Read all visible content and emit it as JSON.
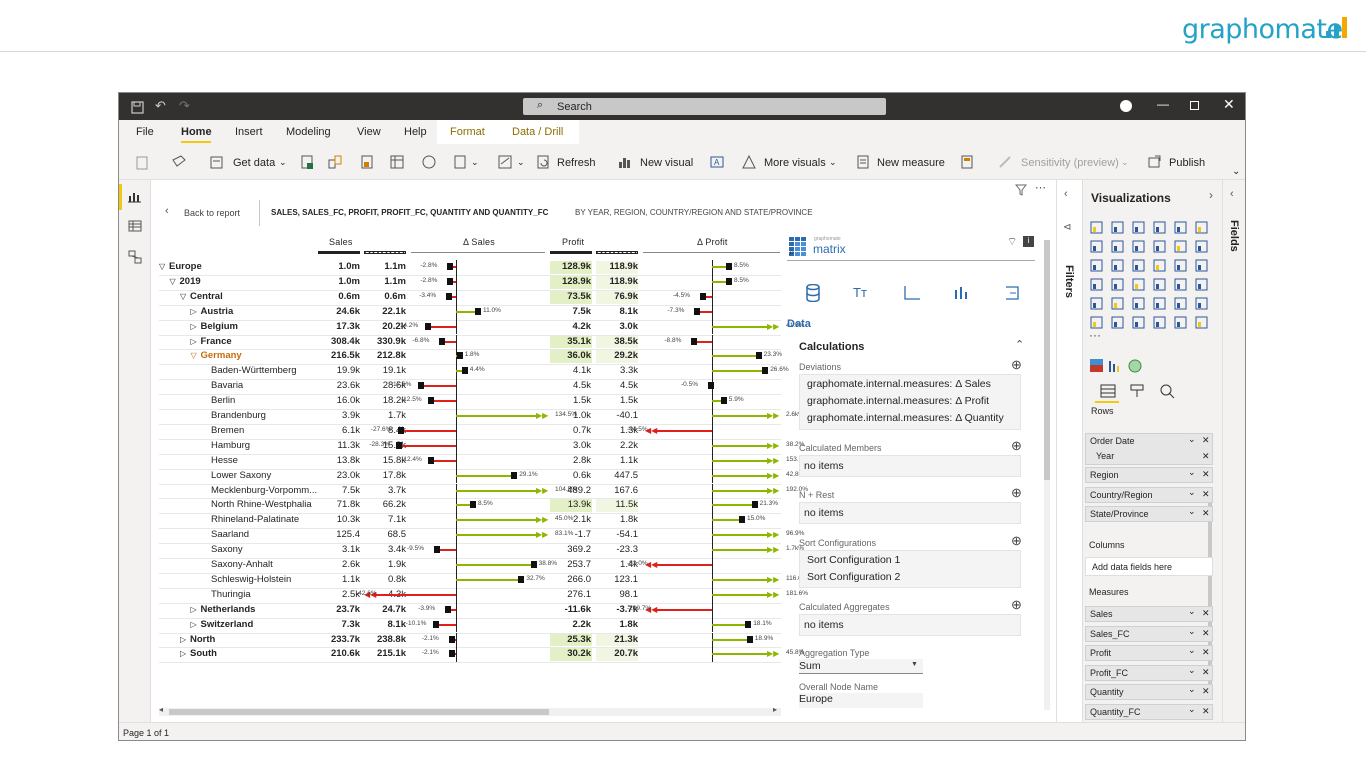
{
  "brand": {
    "name": "graphomate"
  },
  "window": {
    "search_placeholder": "Search",
    "tabs": [
      "File",
      "Home",
      "Insert",
      "Modeling",
      "View",
      "Help",
      "Format",
      "Data / Drill"
    ],
    "toolbar": {
      "get_data": "Get data",
      "refresh": "Refresh",
      "new_visual": "New visual",
      "more_visuals": "More visuals",
      "new_measure": "New measure",
      "sensitivity": "Sensitivity (preview)",
      "publish": "Publish"
    },
    "status": "Page 1 of 1"
  },
  "report": {
    "back": "Back to report",
    "title": "SALES, SALES_FC, PROFIT, PROFIT_FC, QUANTITY AND QUANTITY_FC",
    "subtitle": "BY YEAR, REGION, COUNTRY/REGION AND STATE/PROVINCE",
    "headers": {
      "sales": "Sales",
      "dsales": "Δ Sales",
      "profit": "Profit",
      "dprofit": "Δ Profit"
    },
    "rows": [
      {
        "label": "Europe",
        "ind": 0,
        "exp": "▽",
        "b": 1,
        "s": "1.0m",
        "sf": "1.1m",
        "ds": "-2.8%",
        "dsv": -2.8,
        "p": "128.9k",
        "pf": "118.9k",
        "dp": "8.5%",
        "dpv": 8.5
      },
      {
        "label": "2019",
        "ind": 1,
        "exp": "▽",
        "b": 1,
        "s": "1.0m",
        "sf": "1.1m",
        "ds": "-2.8%",
        "dsv": -2.8,
        "p": "128.9k",
        "pf": "118.9k",
        "dp": "8.5%",
        "dpv": 8.5
      },
      {
        "label": "Central",
        "ind": 2,
        "exp": "▽",
        "b": 1,
        "s": "0.6m",
        "sf": "0.6m",
        "ds": "-3.4%",
        "dsv": -3.4,
        "p": "73.5k",
        "pf": "76.9k",
        "dp": "-4.5%",
        "dpv": -4.5
      },
      {
        "label": "Austria",
        "ind": 3,
        "exp": "▷",
        "b": 1,
        "s": "24.6k",
        "sf": "22.1k",
        "ds": "11.0%",
        "dsv": 11.0,
        "p": "7.5k",
        "pf": "8.1k",
        "dp": "-7.3%",
        "dpv": -7.3
      },
      {
        "label": "Belgium",
        "ind": 3,
        "exp": "▷",
        "b": 1,
        "s": "17.3k",
        "sf": "20.2k",
        "ds": "-14.2%",
        "dsv": -14.2,
        "p": "4.2k",
        "pf": "3.0k",
        "dp": "41.9%",
        "dpv": 41.9
      },
      {
        "label": "France",
        "ind": 3,
        "exp": "▷",
        "b": 1,
        "s": "308.4k",
        "sf": "330.9k",
        "ds": "-6.8%",
        "dsv": -6.8,
        "p": "35.1k",
        "pf": "38.5k",
        "dp": "-8.8%",
        "dpv": -8.8
      },
      {
        "label": "Germany",
        "ind": 3,
        "exp": "▽",
        "b": 1,
        "hl": 1,
        "s": "216.5k",
        "sf": "212.8k",
        "ds": "1.8%",
        "dsv": 1.8,
        "p": "36.0k",
        "pf": "29.2k",
        "dp": "23.3%",
        "dpv": 23.3
      },
      {
        "label": "Baden-Württemberg",
        "ind": 4,
        "exp": "",
        "b": 0,
        "s": "19.9k",
        "sf": "19.1k",
        "ds": "4.4%",
        "dsv": 4.4,
        "p": "4.1k",
        "pf": "3.3k",
        "dp": "26.6%",
        "dpv": 26.6
      },
      {
        "label": "Bavaria",
        "ind": 4,
        "exp": "",
        "b": 0,
        "s": "23.6k",
        "sf": "28.6k",
        "ds": "-17.6%",
        "dsv": -17.6,
        "p": "4.5k",
        "pf": "4.5k",
        "dp": "-0.5%",
        "dpv": -0.5
      },
      {
        "label": "Berlin",
        "ind": 4,
        "exp": "",
        "b": 0,
        "s": "16.0k",
        "sf": "18.2k",
        "ds": "-12.5%",
        "dsv": -12.5,
        "p": "1.5k",
        "pf": "1.5k",
        "dp": "5.9%",
        "dpv": 5.9
      },
      {
        "label": "Brandenburg",
        "ind": 4,
        "exp": "",
        "b": 0,
        "s": "3.9k",
        "sf": "1.7k",
        "ds": "134.5%",
        "dsv": 134.5,
        "p": "1.0k",
        "pf": "-40.1",
        "dp": "2.6k%",
        "dpv": 2600
      },
      {
        "label": "Bremen",
        "ind": 4,
        "exp": "",
        "b": 0,
        "s": "6.1k",
        "sf": "8.4k",
        "ds": "-27.6%",
        "dsv": -27.6,
        "p": "0.7k",
        "pf": "1.3k",
        "dp": "-44.5%",
        "dpv": -44.5
      },
      {
        "label": "Hamburg",
        "ind": 4,
        "exp": "",
        "b": 0,
        "s": "11.3k",
        "sf": "15.8k",
        "ds": "-28.3%",
        "dsv": -28.3,
        "p": "3.0k",
        "pf": "2.2k",
        "dp": "38.2%",
        "dpv": 38.2
      },
      {
        "label": "Hesse",
        "ind": 4,
        "exp": "",
        "b": 0,
        "s": "13.8k",
        "sf": "15.8k",
        "ds": "-12.4%",
        "dsv": -12.4,
        "p": "2.8k",
        "pf": "1.1k",
        "dp": "153.6%",
        "dpv": 153.6
      },
      {
        "label": "Lower Saxony",
        "ind": 4,
        "exp": "",
        "b": 0,
        "s": "23.0k",
        "sf": "17.8k",
        "ds": "29.1%",
        "dsv": 29.1,
        "p": "0.6k",
        "pf": "447.5",
        "dp": "42.8%",
        "dpv": 42.8
      },
      {
        "label": "Mecklenburg-Vorpomm...",
        "ind": 4,
        "exp": "",
        "b": 0,
        "s": "7.5k",
        "sf": "3.7k",
        "ds": "104.5%",
        "dsv": 104.5,
        "p": "489.2",
        "pf": "167.6",
        "dp": "192.0%",
        "dpv": 192.0
      },
      {
        "label": "North Rhine-Westphalia",
        "ind": 4,
        "exp": "",
        "b": 0,
        "s": "71.8k",
        "sf": "66.2k",
        "ds": "8.5%",
        "dsv": 8.5,
        "p": "13.9k",
        "pf": "11.5k",
        "dp": "21.3%",
        "dpv": 21.3
      },
      {
        "label": "Rhineland-Palatinate",
        "ind": 4,
        "exp": "",
        "b": 0,
        "s": "10.3k",
        "sf": "7.1k",
        "ds": "45.0%",
        "dsv": 45.0,
        "p": "2.1k",
        "pf": "1.8k",
        "dp": "15.0%",
        "dpv": 15.0
      },
      {
        "label": "Saarland",
        "ind": 4,
        "exp": "",
        "b": 0,
        "s": "125.4",
        "sf": "68.5",
        "ds": "83.1%",
        "dsv": 83.1,
        "p": "-1.7",
        "pf": "-54.1",
        "dp": "96.9%",
        "dpv": 96.9
      },
      {
        "label": "Saxony",
        "ind": 4,
        "exp": "",
        "b": 0,
        "s": "3.1k",
        "sf": "3.4k",
        "ds": "-9.5%",
        "dsv": -9.5,
        "p": "369.2",
        "pf": "-23.3",
        "dp": "1.7k%",
        "dpv": 1700
      },
      {
        "label": "Saxony-Anhalt",
        "ind": 4,
        "exp": "",
        "b": 0,
        "s": "2.6k",
        "sf": "1.9k",
        "ds": "38.8%",
        "dsv": 38.8,
        "p": "253.7",
        "pf": "1.4k",
        "dp": "-82.0%",
        "dpv": -82.0
      },
      {
        "label": "Schleswig-Holstein",
        "ind": 4,
        "exp": "",
        "b": 0,
        "s": "1.1k",
        "sf": "0.8k",
        "ds": "32.7%",
        "dsv": 32.7,
        "p": "266.0",
        "pf": "123.1",
        "dp": "116.0%",
        "dpv": 116.0
      },
      {
        "label": "Thuringia",
        "ind": 4,
        "exp": "",
        "b": 0,
        "s": "2.5k",
        "sf": "4.3k",
        "ds": "-42.6%",
        "dsv": -42.6,
        "p": "276.1",
        "pf": "98.1",
        "dp": "181.6%",
        "dpv": 181.6
      },
      {
        "label": "Netherlands",
        "ind": 3,
        "exp": "▷",
        "b": 1,
        "s": "23.7k",
        "sf": "24.7k",
        "ds": "-3.9%",
        "dsv": -3.9,
        "p": "-11.6k",
        "pf": "-3.7k",
        "dp": "-209.7%",
        "dpv": -209.7
      },
      {
        "label": "Switzerland",
        "ind": 3,
        "exp": "▷",
        "b": 1,
        "s": "7.3k",
        "sf": "8.1k",
        "ds": "-10.1%",
        "dsv": -10.1,
        "p": "2.2k",
        "pf": "1.8k",
        "dp": "18.1%",
        "dpv": 18.1
      },
      {
        "label": "North",
        "ind": 2,
        "exp": "▷",
        "b": 1,
        "s": "233.7k",
        "sf": "238.8k",
        "ds": "-2.1%",
        "dsv": -2.1,
        "p": "25.3k",
        "pf": "21.3k",
        "dp": "18.9%",
        "dpv": 18.9
      },
      {
        "label": "South",
        "ind": 2,
        "exp": "▷",
        "b": 1,
        "s": "210.6k",
        "sf": "215.1k",
        "ds": "-2.1%",
        "dsv": -2.1,
        "p": "30.2k",
        "pf": "20.7k",
        "dp": "45.8%",
        "dpv": 45.8
      }
    ]
  },
  "filters_label": "Filters",
  "fields_label": "Fields",
  "matrix": {
    "logo_small": "graphomate",
    "logo": "matrix",
    "section": "Data",
    "calc_title": "Calculations",
    "deviations_label": "Deviations",
    "deviations": [
      "graphomate.internal.measures: Δ Sales",
      "graphomate.internal.measures: Δ Profit",
      "graphomate.internal.measures: Δ Quantity"
    ],
    "calc_members": "Calculated Members",
    "no_items": "no items",
    "nrest": "N + Rest",
    "sort_label": "Sort Configurations",
    "sorts": [
      "Sort Configuration 1",
      "Sort Configuration 2"
    ],
    "calc_agg": "Calculated Aggregates",
    "agg_type": "Aggregation Type",
    "agg_value": "Sum",
    "node_name": "Overall Node Name",
    "node_value": "Europe"
  },
  "viz": {
    "title": "Visualizations",
    "rows_label": "Rows",
    "row_fields": [
      "Order Date",
      "Year",
      "Region",
      "Country/Region",
      "State/Province"
    ],
    "columns_label": "Columns",
    "add_fields": "Add data fields here",
    "measures_label": "Measures",
    "measures": [
      "Sales",
      "Sales_FC",
      "Profit",
      "Profit_FC",
      "Quantity",
      "Quantity_FC"
    ]
  }
}
